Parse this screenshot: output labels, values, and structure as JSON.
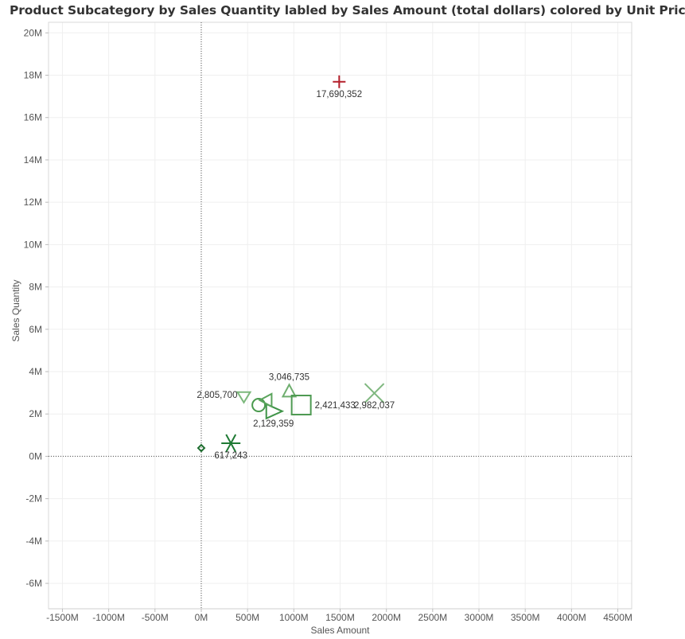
{
  "title": "Product Subcategory by Sales Quantity labled by Sales Amount (total dollars) colored by Unit Price",
  "chart_data": {
    "type": "scatter",
    "title": "Product Subcategory by Sales Quantity labled by Sales Amount (total dollars) colored by Unit Price",
    "xlabel": "Sales Amount",
    "ylabel": "Sales Quantity",
    "xlim": [
      -1650,
      4650
    ],
    "ylim": [
      -7200000,
      20500000
    ],
    "x_ticks": [
      -1500,
      -1000,
      -500,
      0,
      500,
      1000,
      1500,
      2000,
      2500,
      3000,
      3500,
      4000,
      4500
    ],
    "x_tick_labels": [
      "-1500M",
      "-1000M",
      "-500M",
      "0M",
      "500M",
      "1000M",
      "1500M",
      "2000M",
      "2500M",
      "3000M",
      "3500M",
      "4000M",
      "4500M"
    ],
    "y_ticks": [
      -6000000,
      -4000000,
      -2000000,
      0,
      2000000,
      4000000,
      6000000,
      8000000,
      10000000,
      12000000,
      14000000,
      16000000,
      18000000,
      20000000
    ],
    "y_tick_labels": [
      "-6M",
      "-4M",
      "-2M",
      "0M",
      "2M",
      "4M",
      "6M",
      "8M",
      "10M",
      "12M",
      "14M",
      "16M",
      "18M",
      "20M"
    ],
    "grid": true,
    "zero_lines": true,
    "points": [
      {
        "x": 1490,
        "y": 17690352,
        "label": "17,690,352",
        "shape": "plus",
        "color": "#b41f2a",
        "label_pos": "below"
      },
      {
        "x": 1870,
        "y": 2982037,
        "label": "2,982,037",
        "shape": "cross",
        "color": "#7fb87f",
        "label_pos": "below"
      },
      {
        "x": 950,
        "y": 3046735,
        "label": "3,046,735",
        "shape": "triangle-up",
        "color": "#6fae6f",
        "label_pos": "above"
      },
      {
        "x": 1080,
        "y": 2421433,
        "label": "2,421,433",
        "shape": "square",
        "color": "#4e9a52",
        "label_pos": "right"
      },
      {
        "x": 460,
        "y": 2805700,
        "label": "2,805,700",
        "shape": "triangle-down",
        "color": "#7cb87c",
        "label_pos": "left"
      },
      {
        "x": 780,
        "y": 2129359,
        "label": "2,129,359",
        "shape": "triangle-right",
        "color": "#3f9448",
        "label_pos": "below"
      },
      {
        "x": 620,
        "y": 2420000,
        "label": "",
        "shape": "circle",
        "color": "#4a9a4e",
        "label_pos": "none"
      },
      {
        "x": 700,
        "y": 2650000,
        "label": "",
        "shape": "triangle-left",
        "color": "#5aa45c",
        "label_pos": "none"
      },
      {
        "x": 320,
        "y": 617243,
        "label": "617,243",
        "shape": "asterisk",
        "color": "#1f7a34",
        "label_pos": "below"
      },
      {
        "x": 0,
        "y": 390000,
        "label": "",
        "shape": "diamond",
        "color": "#1f6e30",
        "label_pos": "none"
      }
    ]
  }
}
